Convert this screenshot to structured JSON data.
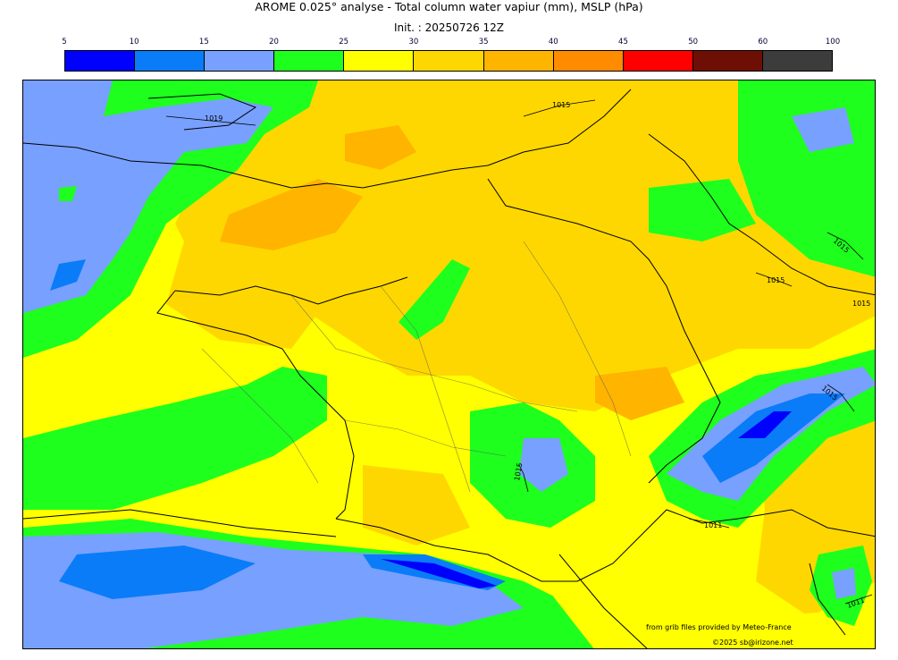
{
  "title": "AROME 0.025° analyse - Total column water vapiur (mm), MSLP (hPa)",
  "subtitle": "Init. : 20250726 12Z",
  "colorbar": {
    "ticks": [
      "5",
      "10",
      "15",
      "20",
      "25",
      "30",
      "35",
      "40",
      "45",
      "50",
      "60",
      "100"
    ],
    "colors": [
      "#0000ff",
      "#0a7cf7",
      "#78a0ff",
      "#1eff1e",
      "#ffff00",
      "#ffd700",
      "#ffb400",
      "#ff8c00",
      "#ff0000",
      "#6e0f05",
      "#3c3c3c"
    ]
  },
  "isobars": [
    "1015",
    "1019",
    "1015",
    "1015",
    "1015",
    "1015",
    "1015",
    "1015",
    "1011",
    "1011"
  ],
  "credits": {
    "source": "from grib files provided by Meteo-France",
    "copyright": "©2025 sb@irizone.net"
  }
}
